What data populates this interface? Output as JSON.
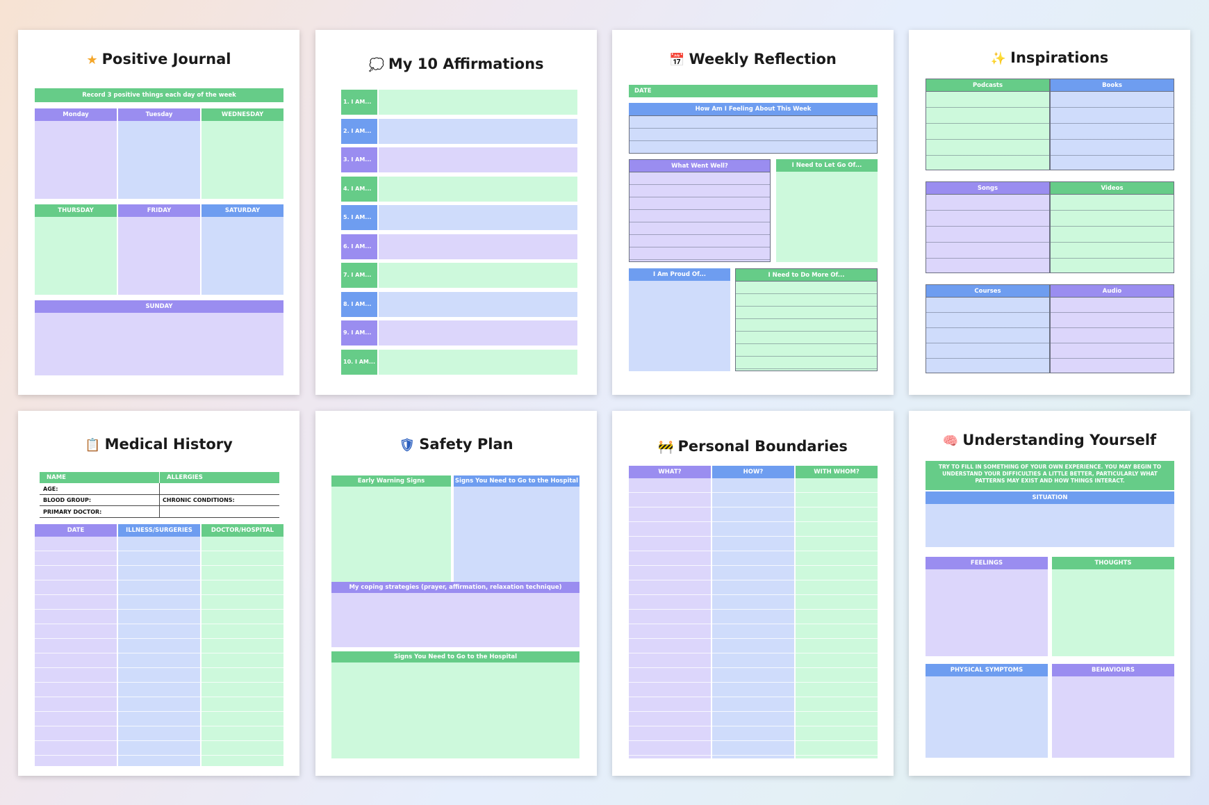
{
  "colors": {
    "green": "#66cc88",
    "blue": "#6e9df0",
    "purple": "#9a8df0",
    "green_light": "#cdf9dc",
    "blue_light": "#cfdcfb",
    "purple_light": "#dcd6fb"
  },
  "journal": {
    "title": "Positive Journal",
    "icon": "star-icon",
    "icon_glyph": "★",
    "subtitle": "Record 3 positive things each day of the week",
    "days": [
      "Monday",
      "Tuesday",
      "WEDNESDAY",
      "THURSDAY",
      "FRIDAY",
      "SATURDAY",
      "SUNDAY"
    ]
  },
  "affirmations": {
    "title": "My 10 Affirmations",
    "icon": "speech-bubble-icon",
    "icon_glyph": "💭",
    "items": [
      "1. I AM...",
      "2. I AM...",
      "3. I AM...",
      "4. I AM...",
      "5. I AM...",
      "6. I AM...",
      "7. I AM...",
      "8. I AM...",
      "9. I AM...",
      "10. I AM..."
    ]
  },
  "weekly": {
    "title": "Weekly Reflection",
    "icon": "calendar-icon",
    "icon_glyph": "📅",
    "date_label": "DATE",
    "feeling_label": "How Am I Feeling About This Week",
    "went_well_label": "What Went Well?",
    "let_go_label": "I Need to Let Go Of...",
    "proud_label": "I Am Proud Of...",
    "do_more_label": "I Need to Do More Of..."
  },
  "inspirations": {
    "title": "Inspirations",
    "icon": "sparkle-star-icon",
    "icon_glyph": "✨",
    "cols": [
      "Podcasts",
      "Books",
      "Songs",
      "Videos",
      "Courses",
      "Audio"
    ]
  },
  "medical": {
    "title": "Medical History",
    "icon": "clipboard-icon",
    "icon_glyph": "📋",
    "name_label": "NAME",
    "allergies_label": "ALLERGIES",
    "age_label": "AGE:",
    "blood_label": "BLOOD GROUP:",
    "chronic_label": "CHRONIC CONDITIONS:",
    "doctor_label": "PRIMARY DOCTOR:",
    "cols": [
      "DATE",
      "ILLNESS/SURGERIES",
      "DOCTOR/HOSPITAL"
    ]
  },
  "safety": {
    "title": "Safety Plan",
    "icon": "shield-icon",
    "icon_glyph": "🛡",
    "early_label": "Early Warning Signs",
    "hospital_label": "Signs You Need to Go to the Hospital",
    "coping_label": "My coping strategies (prayer, affirmation, relaxation technique)",
    "hospital_label2": "Signs You Need to Go to the Hospital"
  },
  "boundaries": {
    "title": "Personal Boundaries",
    "icon": "barrier-icon",
    "icon_glyph": "🚧",
    "cols": [
      "WHAT?",
      "HOW?",
      "WITH WHOM?"
    ]
  },
  "understanding": {
    "title": "Understanding Yourself",
    "icon": "brain-icon",
    "icon_glyph": "🧠",
    "note": "TRY TO FILL IN SOMETHING OF YOUR OWN EXPERIENCE. YOU MAY BEGIN TO UNDERSTAND YOUR DIFFICULTIES A LITTLE BETTER, PARTICULARLY WHAT PATTERNS MAY EXIST AND HOW THINGS INTERACT.",
    "situation_label": "SITUATION",
    "feelings_label": "FEELINGS",
    "thoughts_label": "THOUGHTS",
    "physical_label": "PHYSICAL SYMPTOMS",
    "behaviours_label": "BEHAVIOURS"
  }
}
